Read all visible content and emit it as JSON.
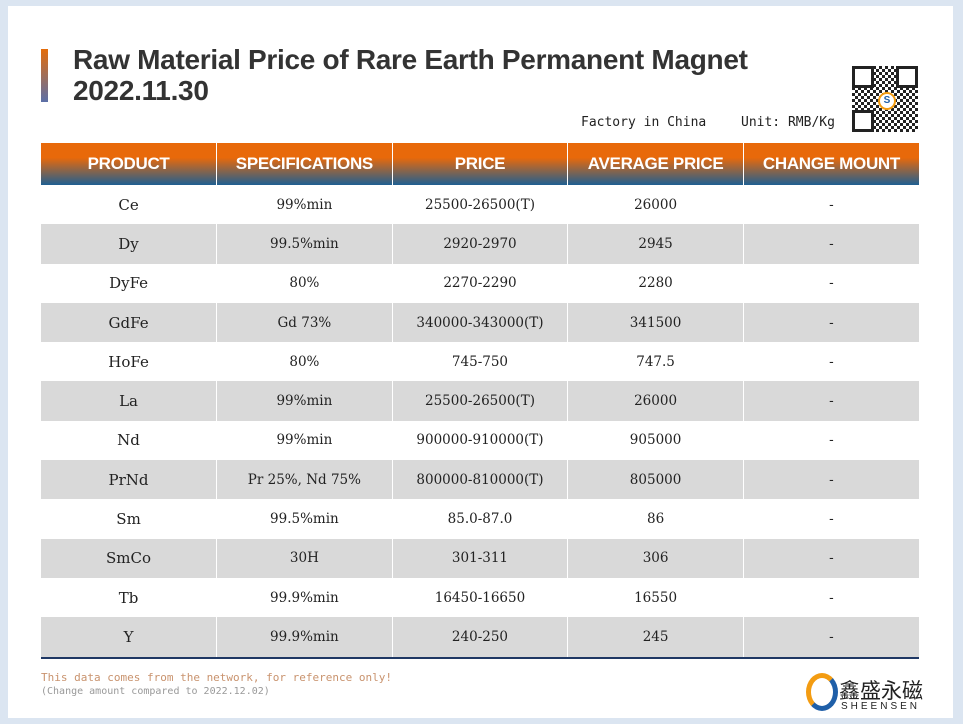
{
  "title": {
    "line1": "Raw Material Price of Rare Earth Permanent Magnet",
    "line2": "2022.11.30"
  },
  "meta": {
    "location": "Factory in China",
    "unit": "Unit: RMB/Kg"
  },
  "colors": {
    "header_top": "#e8690a",
    "header_bottom": "#1f5f91",
    "row_alt": "#d9d9d9"
  },
  "table": {
    "headers": [
      "PRODUCT",
      "SPECIFICATIONS",
      "PRICE",
      "AVERAGE PRICE",
      "CHANGE MOUNT"
    ],
    "rows": [
      [
        "Ce",
        "99%min",
        "25500-26500(T)",
        "26000",
        "-"
      ],
      [
        "Dy",
        "99.5%min",
        "2920-2970",
        "2945",
        "-"
      ],
      [
        "DyFe",
        "80%",
        "2270-2290",
        "2280",
        "-"
      ],
      [
        "GdFe",
        "Gd 73%",
        "340000-343000(T)",
        "341500",
        "-"
      ],
      [
        "HoFe",
        "80%",
        "745-750",
        "747.5",
        "-"
      ],
      [
        "La",
        "99%min",
        "25500-26500(T)",
        "26000",
        "-"
      ],
      [
        "Nd",
        "99%min",
        "900000-910000(T)",
        "905000",
        "-"
      ],
      [
        "PrNd",
        "Pr 25%, Nd 75%",
        "800000-810000(T)",
        "805000",
        "-"
      ],
      [
        "Sm",
        "99.5%min",
        "85.0-87.0",
        "86",
        "-"
      ],
      [
        "SmCo",
        "30H",
        "301-311",
        "306",
        "-"
      ],
      [
        "Tb",
        "99.9%min",
        "16450-16650",
        "16550",
        "-"
      ],
      [
        "Y",
        "99.9%min",
        "240-250",
        "245",
        "-"
      ]
    ]
  },
  "footer": {
    "note1": "This data comes from the network, for reference only!",
    "note2": "(Change amount compared to 2022.12.02)"
  },
  "logo": {
    "cn": "鑫盛永磁",
    "en": "SHEENSEN"
  }
}
